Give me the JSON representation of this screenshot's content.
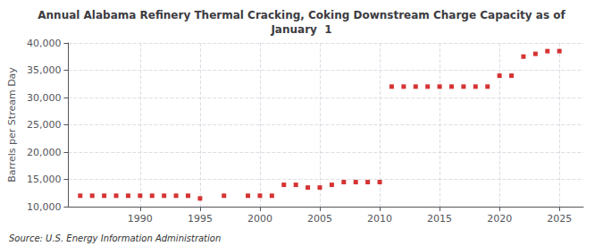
{
  "chart_data": {
    "type": "scatter",
    "title": "Annual Alabama Refinery Thermal Cracking, Coking Downstream Charge Capacity as of\nJanuary  1",
    "ylabel": "Barrels per Stream Day",
    "annotations": [
      "Source: U.S. Energy Information Administration"
    ],
    "x": [
      1985,
      1986,
      1987,
      1988,
      1989,
      1990,
      1991,
      1992,
      1993,
      1994,
      1995,
      1997,
      1999,
      2000,
      2001,
      2002,
      2003,
      2004,
      2005,
      2006,
      2007,
      2008,
      2009,
      2010,
      2011,
      2012,
      2013,
      2014,
      2015,
      2016,
      2017,
      2018,
      2019,
      2020,
      2021,
      2022,
      2023,
      2024,
      2025
    ],
    "values": [
      12000,
      12000,
      12000,
      12000,
      12000,
      12000,
      12000,
      12000,
      12000,
      12000,
      11500,
      12000,
      12000,
      12000,
      12000,
      14000,
      14000,
      13500,
      13500,
      14000,
      14500,
      14500,
      14500,
      14500,
      32000,
      32000,
      32000,
      32000,
      32000,
      32000,
      32000,
      32000,
      32000,
      34000,
      34000,
      37500,
      38000,
      38500,
      38500
    ],
    "color": "#cc0000",
    "marker": "square",
    "xlim": [
      1984,
      2027
    ],
    "xticks": [
      1990,
      1995,
      2000,
      2005,
      2010,
      2015,
      2020,
      2025
    ],
    "ylim": [
      10000,
      40000
    ],
    "yticks": [
      {
        "value": 10000,
        "label": "10,000"
      },
      {
        "value": 15000,
        "label": "15,000"
      },
      {
        "value": 20000,
        "label": "20,000"
      },
      {
        "value": 25000,
        "label": "25,000"
      },
      {
        "value": 30000,
        "label": "30,000"
      },
      {
        "value": 35000,
        "label": "35,000"
      },
      {
        "value": 40000,
        "label": "40,000"
      }
    ],
    "grid": true
  }
}
